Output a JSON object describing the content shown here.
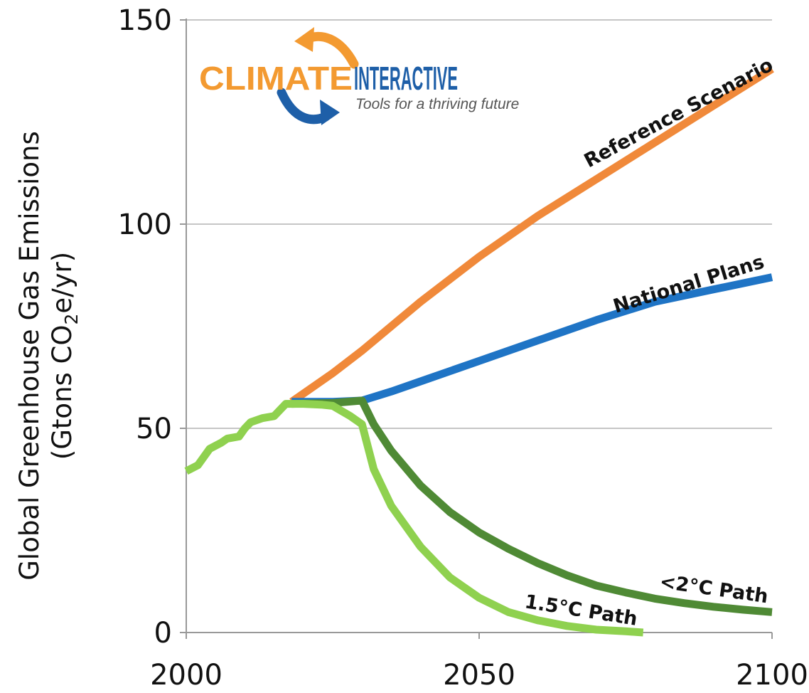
{
  "chart_data": {
    "type": "line",
    "ylabel": "Global Greenhouse Gas Emissions",
    "ylabel_line2_prefix": "(Gtons CO",
    "ylabel_line2_sub": "2",
    "ylabel_line2_suffix": "e/yr)",
    "xlim": [
      2000,
      2100
    ],
    "ylim": [
      0,
      150
    ],
    "x_ticks": [
      2000,
      2050,
      2100
    ],
    "y_ticks": [
      0,
      50,
      100,
      150
    ],
    "grid": "horizontal",
    "series": [
      {
        "name": "Reference Scenario",
        "color": "#f0893a",
        "points": [
          [
            2018,
            56.5
          ],
          [
            2025,
            63.5
          ],
          [
            2030,
            69
          ],
          [
            2040,
            81
          ],
          [
            2050,
            92
          ],
          [
            2060,
            102
          ],
          [
            2070,
            111
          ],
          [
            2080,
            120
          ],
          [
            2090,
            129
          ],
          [
            2100,
            138
          ]
        ]
      },
      {
        "name": "National Plans",
        "color": "#1f74c5",
        "points": [
          [
            2018,
            56.5
          ],
          [
            2025,
            56.5
          ],
          [
            2030,
            56.8
          ],
          [
            2035,
            59
          ],
          [
            2040,
            61.5
          ],
          [
            2050,
            66.5
          ],
          [
            2060,
            71.5
          ],
          [
            2070,
            76.5
          ],
          [
            2080,
            81
          ],
          [
            2090,
            84
          ],
          [
            2100,
            87
          ]
        ]
      },
      {
        "name": "<2°C Path",
        "color": "#4f8a35",
        "points": [
          [
            2018,
            56
          ],
          [
            2025,
            56.2
          ],
          [
            2030,
            56.8
          ],
          [
            2032,
            51
          ],
          [
            2035,
            44.5
          ],
          [
            2040,
            36
          ],
          [
            2045,
            29.5
          ],
          [
            2050,
            24.5
          ],
          [
            2055,
            20.5
          ],
          [
            2060,
            17
          ],
          [
            2065,
            14
          ],
          [
            2070,
            11.5
          ],
          [
            2075,
            9.8
          ],
          [
            2080,
            8.3
          ],
          [
            2085,
            7.2
          ],
          [
            2090,
            6.3
          ],
          [
            2095,
            5.6
          ],
          [
            2100,
            5
          ]
        ]
      },
      {
        "name": "1.5°C Path",
        "color": "#8fd14f",
        "points": [
          [
            2000,
            39.5
          ],
          [
            2002,
            41
          ],
          [
            2004,
            45
          ],
          [
            2006,
            46.5
          ],
          [
            2007,
            47.5
          ],
          [
            2009,
            48
          ],
          [
            2010,
            50
          ],
          [
            2011,
            51.5
          ],
          [
            2013,
            52.5
          ],
          [
            2015,
            53
          ],
          [
            2017,
            56
          ],
          [
            2020,
            56
          ],
          [
            2023,
            55.8
          ],
          [
            2025,
            55.5
          ],
          [
            2028,
            53
          ],
          [
            2030,
            51
          ],
          [
            2032,
            40
          ],
          [
            2035,
            31
          ],
          [
            2040,
            21
          ],
          [
            2045,
            13.5
          ],
          [
            2050,
            8.5
          ],
          [
            2055,
            5
          ],
          [
            2060,
            3
          ],
          [
            2065,
            1.6
          ],
          [
            2070,
            0.7
          ],
          [
            2075,
            0.3
          ],
          [
            2078,
            0
          ]
        ]
      }
    ]
  },
  "logo": {
    "word1": "CLIMATE",
    "word2": "INTERACTIVE",
    "tagline": "Tools for a thriving future",
    "color_orange": "#f39a31",
    "color_blue": "#1e5fa8"
  }
}
